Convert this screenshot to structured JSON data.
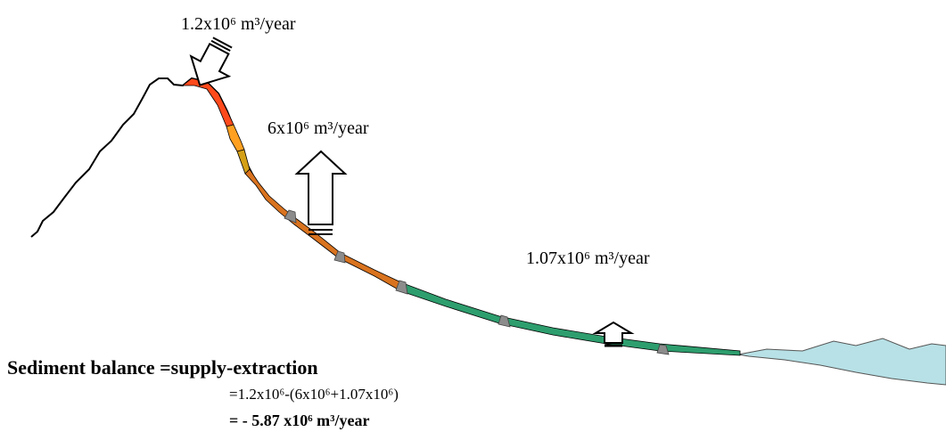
{
  "labels": {
    "supply": "1.2x10⁶ m³/year",
    "extraction_upper": "6x10⁶ m³/year",
    "extraction_lower": "1.07x10⁶ m³/year"
  },
  "balance": {
    "title": "Sediment balance =supply-extraction",
    "formula": "=1.2x10⁶-(6x10⁶+1.07x10⁶)",
    "result": "= - 5.87 x10⁶ m³/year"
  }
}
